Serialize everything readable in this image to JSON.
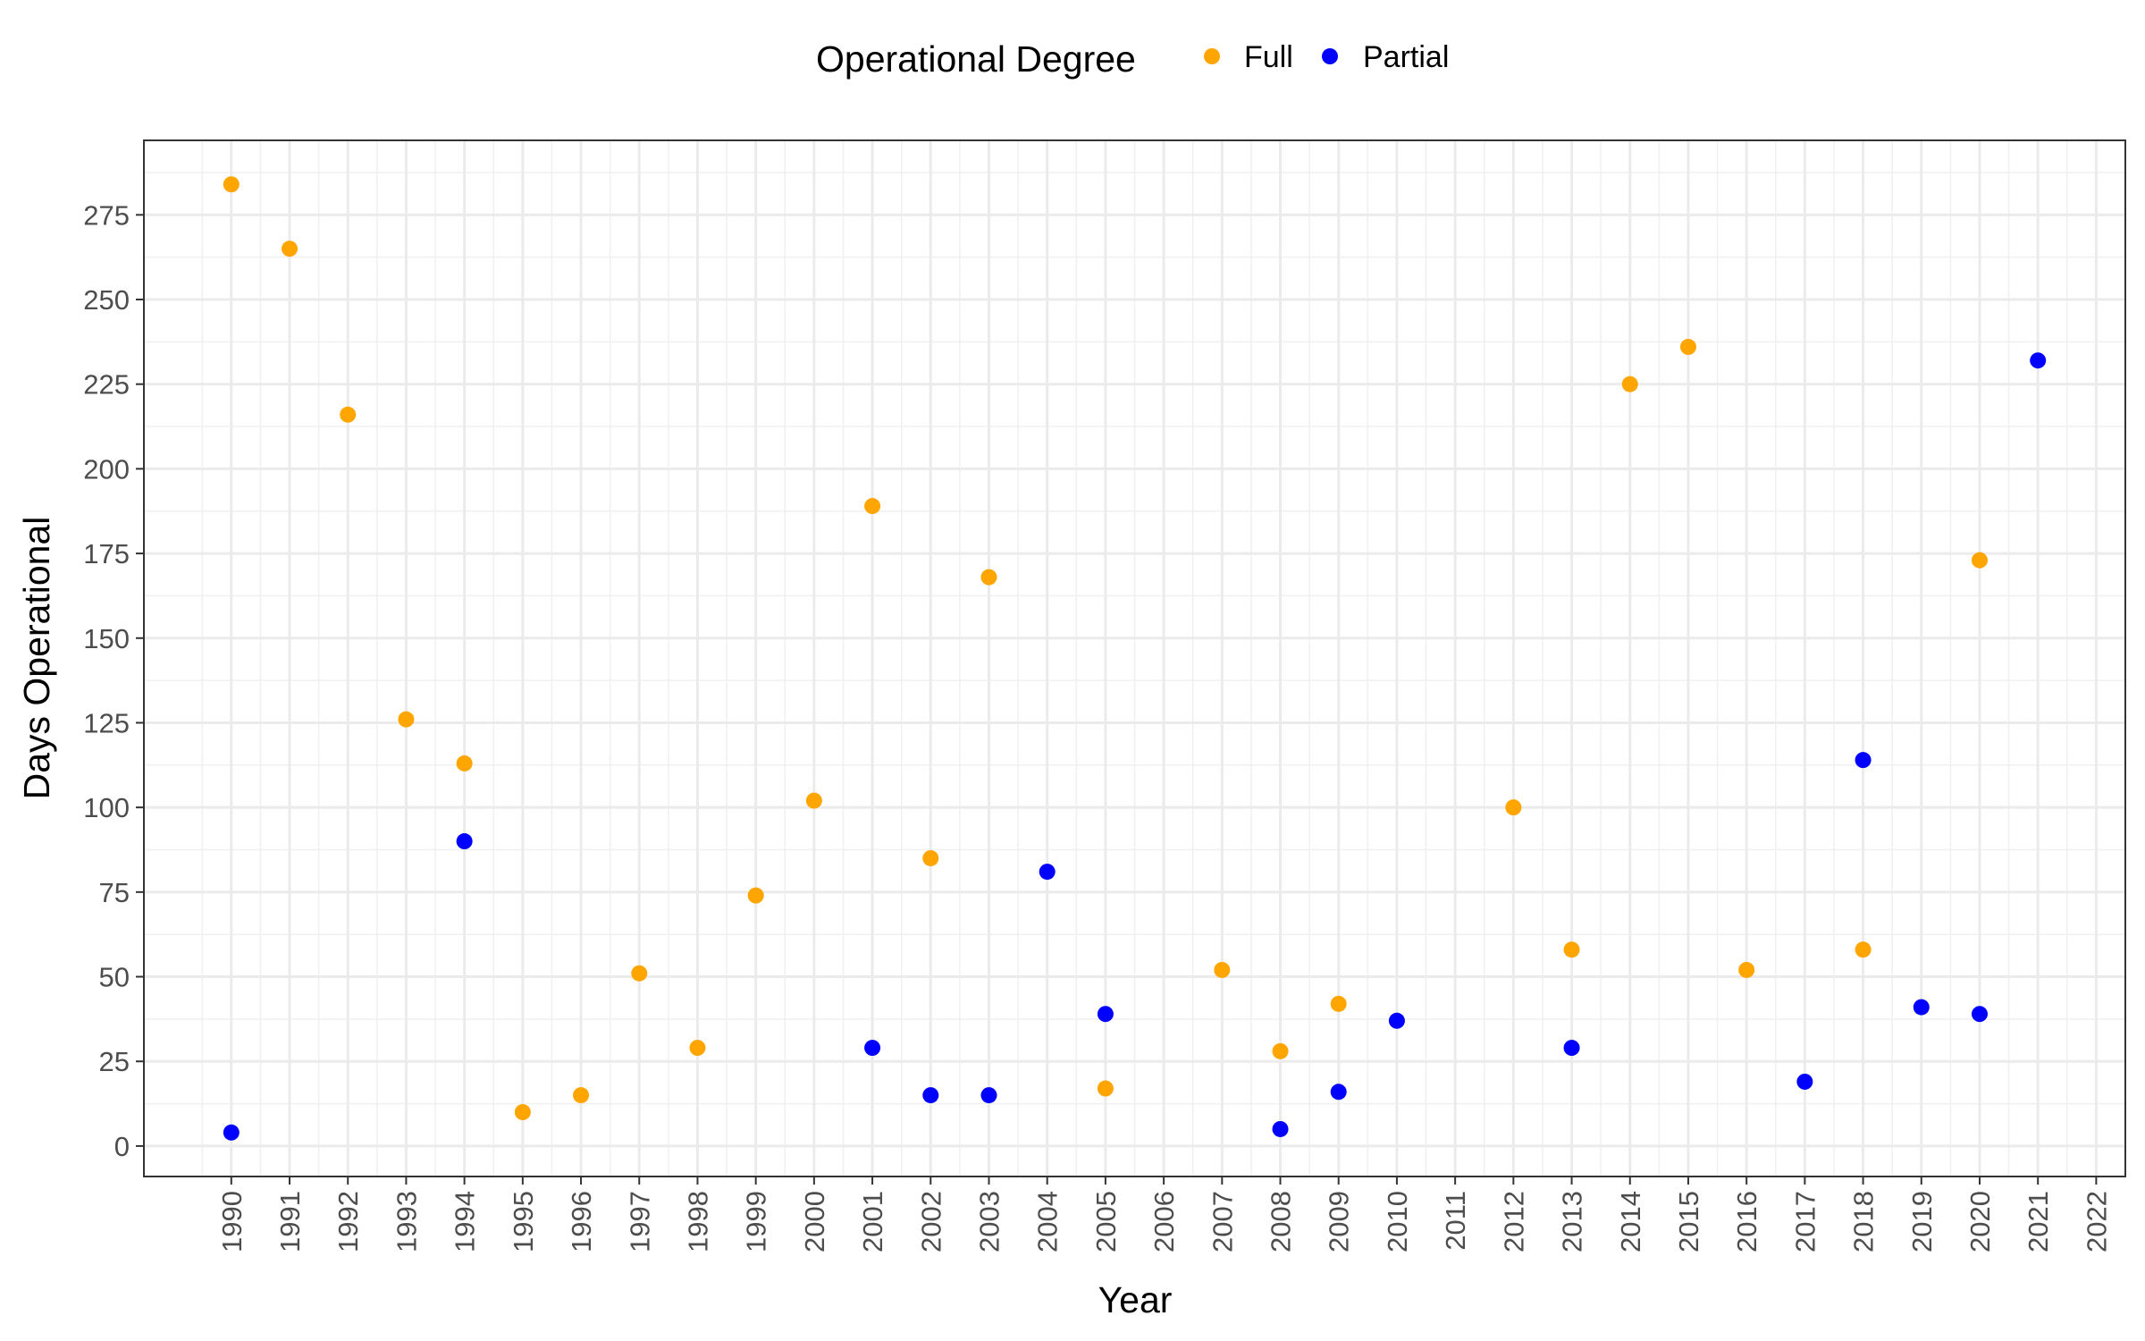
{
  "chart_data": {
    "type": "scatter",
    "xlabel": "Year",
    "ylabel": "Days Operational",
    "xlim": [
      1988.5,
      2022.5
    ],
    "ylim": [
      -9,
      297
    ],
    "x_ticks": [
      "1990",
      "1991",
      "1992",
      "1993",
      "1994",
      "1995",
      "1996",
      "1997",
      "1998",
      "1999",
      "2000",
      "2001",
      "2002",
      "2003",
      "2004",
      "2005",
      "2006",
      "2007",
      "2008",
      "2009",
      "2010",
      "2011",
      "2012",
      "2013",
      "2014",
      "2015",
      "2016",
      "2017",
      "2018",
      "2019",
      "2020",
      "2021",
      "2022"
    ],
    "y_ticks": [
      "0",
      "25",
      "50",
      "75",
      "100",
      "125",
      "150",
      "175",
      "200",
      "225",
      "250",
      "275"
    ],
    "grid": true,
    "legend": {
      "title": "Operational Degree",
      "position": "top"
    },
    "series": [
      {
        "name": "Full",
        "color": "#FFA500",
        "points": [
          {
            "x": 1990,
            "y": 284
          },
          {
            "x": 1991,
            "y": 265
          },
          {
            "x": 1992,
            "y": 216
          },
          {
            "x": 1993,
            "y": 126
          },
          {
            "x": 1994,
            "y": 113
          },
          {
            "x": 1995,
            "y": 10
          },
          {
            "x": 1996,
            "y": 15
          },
          {
            "x": 1997,
            "y": 51
          },
          {
            "x": 1998,
            "y": 29
          },
          {
            "x": 1999,
            "y": 74
          },
          {
            "x": 2000,
            "y": 102
          },
          {
            "x": 2001,
            "y": 189
          },
          {
            "x": 2002,
            "y": 85
          },
          {
            "x": 2003,
            "y": 168
          },
          {
            "x": 2005,
            "y": 17
          },
          {
            "x": 2007,
            "y": 52
          },
          {
            "x": 2008,
            "y": 28
          },
          {
            "x": 2009,
            "y": 42
          },
          {
            "x": 2012,
            "y": 100
          },
          {
            "x": 2013,
            "y": 58
          },
          {
            "x": 2014,
            "y": 225
          },
          {
            "x": 2015,
            "y": 236
          },
          {
            "x": 2016,
            "y": 52
          },
          {
            "x": 2018,
            "y": 58
          },
          {
            "x": 2020,
            "y": 173
          }
        ]
      },
      {
        "name": "Partial",
        "color": "#0000FF",
        "points": [
          {
            "x": 1990,
            "y": 4
          },
          {
            "x": 1994,
            "y": 90
          },
          {
            "x": 2001,
            "y": 29
          },
          {
            "x": 2002,
            "y": 15
          },
          {
            "x": 2003,
            "y": 15
          },
          {
            "x": 2004,
            "y": 81
          },
          {
            "x": 2005,
            "y": 39
          },
          {
            "x": 2008,
            "y": 5
          },
          {
            "x": 2009,
            "y": 16
          },
          {
            "x": 2010,
            "y": 37
          },
          {
            "x": 2013,
            "y": 29
          },
          {
            "x": 2017,
            "y": 19
          },
          {
            "x": 2018,
            "y": 114
          },
          {
            "x": 2019,
            "y": 41
          },
          {
            "x": 2020,
            "y": 39
          },
          {
            "x": 2021,
            "y": 232
          }
        ]
      }
    ]
  }
}
